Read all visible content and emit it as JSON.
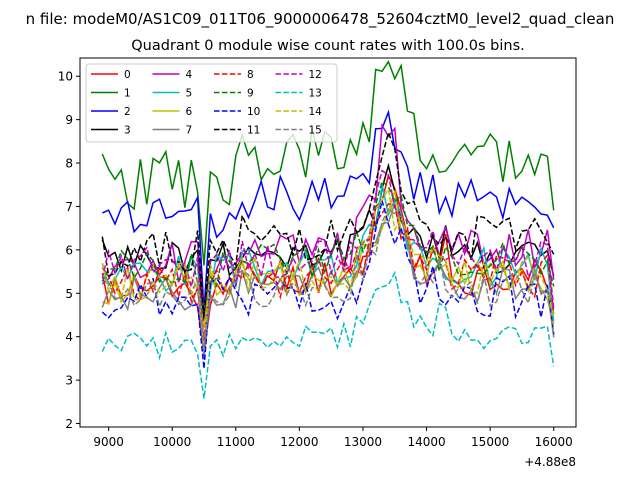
{
  "chart_data": {
    "type": "line",
    "suptitle": "n file: modeM0/AS1C09_011T06_9000006478_52604cztM0_level2_quad_clean",
    "title": "Quadrant 0 module wise count rates with 100.0s bins.",
    "xlabel": "",
    "ylabel": "",
    "x_offset_label": "+4.88e8",
    "xlim": [
      8550,
      16350
    ],
    "ylim": [
      1.92,
      10.42
    ],
    "x_ticks": [
      9000,
      10000,
      11000,
      12000,
      13000,
      14000,
      15000,
      16000
    ],
    "x_tick_labels": [
      "9000",
      "10000",
      "11000",
      "12000",
      "13000",
      "14000",
      "15000",
      "16000"
    ],
    "y_ticks": [
      2,
      3,
      4,
      5,
      6,
      7,
      8,
      9,
      10
    ],
    "y_tick_labels": [
      "2",
      "3",
      "4",
      "5",
      "6",
      "7",
      "8",
      "9",
      "10"
    ],
    "legend_position": "top-left",
    "series": [
      {
        "name": "0",
        "color": "#ff0000",
        "dash": "solid",
        "base": 5.1,
        "shift": 0.3,
        "amp": 0.45,
        "spike": 2.2,
        "dip": 1.4,
        "seed": 11
      },
      {
        "name": "1",
        "color": "#008000",
        "dash": "solid",
        "base": 7.6,
        "shift": 0.5,
        "amp": 0.7,
        "spike": 2.5,
        "dip": 2.2,
        "seed": 23
      },
      {
        "name": "2",
        "color": "#0000ff",
        "dash": "solid",
        "base": 6.7,
        "shift": 0.5,
        "amp": 0.55,
        "spike": 2.0,
        "dip": 1.7,
        "seed": 37
      },
      {
        "name": "3",
        "color": "#000000",
        "dash": "solid",
        "base": 5.8,
        "shift": 0.1,
        "amp": 0.45,
        "spike": 1.8,
        "dip": 1.5,
        "seed": 41
      },
      {
        "name": "4",
        "color": "#bf00bf",
        "dash": "solid",
        "base": 5.7,
        "shift": 0.3,
        "amp": 0.5,
        "spike": 2.7,
        "dip": 1.4,
        "seed": 53
      },
      {
        "name": "5",
        "color": "#00bfbf",
        "dash": "solid",
        "base": 5.5,
        "shift": 0.1,
        "amp": 0.45,
        "spike": 1.6,
        "dip": 1.5,
        "seed": 67
      },
      {
        "name": "6",
        "color": "#bfbf00",
        "dash": "solid",
        "base": 5.2,
        "shift": 0.1,
        "amp": 0.45,
        "spike": 1.8,
        "dip": 1.2,
        "seed": 71
      },
      {
        "name": "7",
        "color": "#808080",
        "dash": "solid",
        "base": 5.0,
        "shift": 0.2,
        "amp": 0.4,
        "spike": 1.9,
        "dip": 1.1,
        "seed": 83
      },
      {
        "name": "8",
        "color": "#ff0000",
        "dash": "dashed",
        "base": 5.3,
        "shift": 0.1,
        "amp": 0.5,
        "spike": 2.1,
        "dip": 1.3,
        "seed": 97
      },
      {
        "name": "9",
        "color": "#008000",
        "dash": "dashed",
        "base": 5.6,
        "shift": 0.2,
        "amp": 0.45,
        "spike": 1.8,
        "dip": 1.4,
        "seed": 101
      },
      {
        "name": "10",
        "color": "#0000ff",
        "dash": "dashed",
        "base": 4.9,
        "shift": 0.0,
        "amp": 0.5,
        "spike": 2.2,
        "dip": 1.3,
        "seed": 113
      },
      {
        "name": "11",
        "color": "#000000",
        "dash": "dashed",
        "base": 5.9,
        "shift": 0.4,
        "amp": 0.55,
        "spike": 1.7,
        "dip": 1.6,
        "seed": 127
      },
      {
        "name": "12",
        "color": "#bf00bf",
        "dash": "dashed",
        "base": 5.6,
        "shift": 0.2,
        "amp": 0.45,
        "spike": 2.0,
        "dip": 1.5,
        "seed": 131
      },
      {
        "name": "13",
        "color": "#00bfbf",
        "dash": "dashed",
        "base": 3.8,
        "shift": 0.2,
        "amp": 0.3,
        "spike": 1.3,
        "dip": 1.5,
        "seed": 149
      },
      {
        "name": "14",
        "color": "#bfbf00",
        "dash": "dashed",
        "base": 5.3,
        "shift": 0.1,
        "amp": 0.45,
        "spike": 1.9,
        "dip": 1.3,
        "seed": 151
      },
      {
        "name": "15",
        "color": "#808080",
        "dash": "dashed",
        "base": 5.0,
        "shift": 0.1,
        "amp": 0.45,
        "spike": 2.0,
        "dip": 1.2,
        "seed": 163
      }
    ],
    "x_start": 8900,
    "x_step": 100,
    "x_end": 16000,
    "spike_at": 13400,
    "dip_at": 10500
  }
}
